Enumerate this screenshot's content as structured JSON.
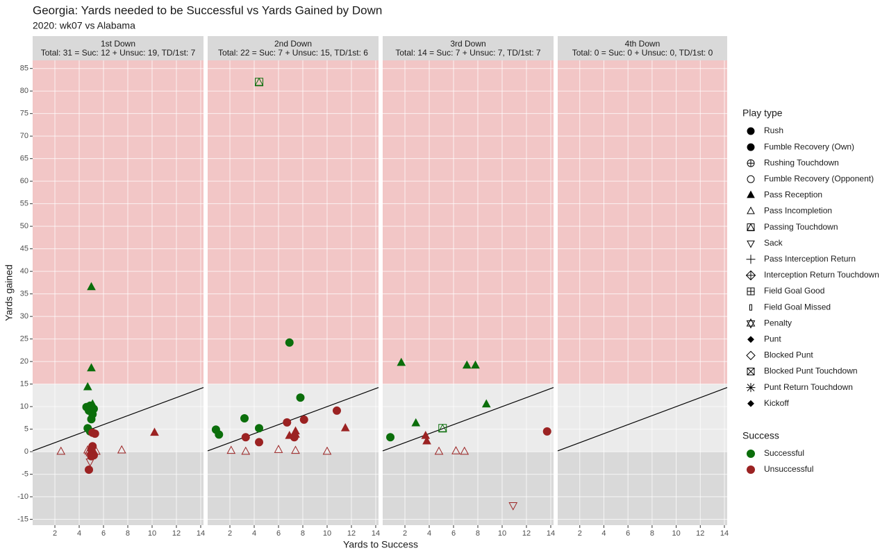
{
  "title": "Georgia: Yards needed to be Successful vs Yards Gained by Down",
  "subtitle": "2020: wk07 vs Alabama",
  "xlabel": "Yards to Success",
  "ylabel": "Yards gained",
  "legend": {
    "title": "Play type",
    "entries": [
      {
        "name": "Rush",
        "shape": "circle"
      },
      {
        "name": "Fumble Recovery (Own)",
        "shape": "circle"
      },
      {
        "name": "Rushing Touchdown",
        "shape": "circle-plus"
      },
      {
        "name": "Fumble Recovery (Opponent)",
        "shape": "open-circle"
      },
      {
        "name": "Pass Reception",
        "shape": "triangle"
      },
      {
        "name": "Pass Incompletion",
        "shape": "open-triangle"
      },
      {
        "name": "Passing Touchdown",
        "shape": "square-triangle"
      },
      {
        "name": "Sack",
        "shape": "open-down-triangle"
      },
      {
        "name": "Pass Interception Return",
        "shape": "plus"
      },
      {
        "name": "Interception Return Touchdown",
        "shape": "diamond-plus"
      },
      {
        "name": "Field Goal Good",
        "shape": "square-plus"
      },
      {
        "name": "Field Goal Missed",
        "shape": "small-rect"
      },
      {
        "name": "Penalty",
        "shape": "star-of-david"
      },
      {
        "name": "Punt",
        "shape": "diamond"
      },
      {
        "name": "Blocked Punt",
        "shape": "open-diamond"
      },
      {
        "name": "Blocked Punt Touchdown",
        "shape": "square-x"
      },
      {
        "name": "Punt Return Touchdown",
        "shape": "asterisk"
      },
      {
        "name": "Kickoff",
        "shape": "diamond"
      }
    ],
    "success_title": "Success"
  },
  "chart_data": [
    {
      "type": "scatter",
      "title": "1st Down",
      "subtitle": "Total: 31 = Suc: 12 + Unsuc: 19, TD/1st: 7",
      "xlim": [
        0.17,
        14.23
      ],
      "ylim": [
        -16.3,
        86.8
      ],
      "xticks": [
        2,
        4,
        6,
        8,
        10,
        12,
        14
      ],
      "yticks": [
        -15,
        -10,
        -5,
        0,
        5,
        10,
        15,
        20,
        25,
        30,
        35,
        40,
        45,
        50,
        55,
        60,
        65,
        70,
        75,
        80,
        85
      ],
      "grid": true,
      "bands": [
        {
          "from": 15,
          "color": "#f2c6c6"
        },
        {
          "to": 0,
          "color": "#d9d9d9"
        }
      ],
      "reference_line": {
        "slope": 1,
        "intercept": 0
      },
      "series": [
        {
          "name": "Successful",
          "color": "#0b6e0b",
          "x": [
            5,
            5,
            4.7,
            4.6,
            4.9,
            5.1,
            4.8,
            5.1,
            5,
            4.7,
            4.9,
            5.2
          ],
          "values": [
            36.5,
            18.5,
            14.3,
            9.9,
            10.2,
            10.5,
            9.1,
            8.3,
            7.2,
            5.2,
            4.5,
            9.5
          ],
          "shapes": [
            "triangle",
            "triangle",
            "triangle",
            "circle",
            "circle",
            "triangle",
            "circle",
            "circle",
            "circle",
            "circle",
            "circle",
            "circle"
          ]
        },
        {
          "name": "Unsuccessful",
          "color": "#9b2222",
          "x": [
            10.2,
            5.1,
            5.3,
            5.1,
            2.5,
            7.5,
            4.7,
            5,
            5.4,
            4.8,
            5.1,
            5.2,
            4.9,
            5,
            5.2,
            5,
            5,
            4.9,
            4.8
          ],
          "values": [
            4.2,
            4.2,
            4,
            1.2,
            0,
            0.3,
            0.3,
            0,
            0,
            0,
            0.2,
            0,
            -0.3,
            0.5,
            -0.8,
            -1,
            -0.5,
            -2.2,
            -4
          ],
          "shapes": [
            "triangle",
            "circle",
            "circle",
            "circle",
            "open-triangle",
            "open-triangle",
            "open-triangle",
            "open-triangle",
            "open-triangle",
            "open-triangle",
            "open-triangle",
            "open-triangle",
            "open-triangle",
            "circle",
            "circle",
            "circle",
            "open-triangle",
            "open-down-triangle",
            "circle"
          ]
        }
      ]
    },
    {
      "type": "scatter",
      "title": "2nd Down",
      "subtitle": "Total: 22 = Suc: 7 + Unsuc: 15, TD/1st: 6",
      "xlim": [
        0.17,
        14.23
      ],
      "ylim": [
        -16.3,
        86.8
      ],
      "xticks": [
        2,
        4,
        6,
        8,
        10,
        12,
        14
      ],
      "yticks": [
        -15,
        -10,
        -5,
        0,
        5,
        10,
        15,
        20,
        25,
        30,
        35,
        40,
        45,
        50,
        55,
        60,
        65,
        70,
        75,
        80,
        85
      ],
      "grid": true,
      "bands": [
        {
          "from": 15,
          "color": "#f2c6c6"
        },
        {
          "to": 0,
          "color": "#d9d9d9"
        }
      ],
      "reference_line": {
        "slope": 1,
        "intercept": 0
      },
      "series": [
        {
          "name": "Successful",
          "color": "#0b6e0b",
          "x": [
            4.4,
            6.9,
            7.8,
            3.2,
            4.4,
            0.85,
            1.1
          ],
          "values": [
            82,
            24.2,
            12,
            7.4,
            5.2,
            4.9,
            3.8
          ],
          "shapes": [
            "square-triangle",
            "circle",
            "circle",
            "circle",
            "circle",
            "circle",
            "circle"
          ]
        },
        {
          "name": "Unsuccessful",
          "color": "#9b2222",
          "x": [
            10.8,
            8.1,
            6.7,
            11.5,
            7.4,
            6.9,
            7.4,
            7.3,
            3.3,
            4.4,
            2.1,
            3.3,
            6,
            7.4,
            10
          ],
          "values": [
            9.1,
            7.1,
            6.5,
            5.2,
            4.5,
            3.5,
            3.8,
            3.2,
            3.2,
            2.1,
            0.2,
            0,
            0.4,
            0.2,
            0
          ],
          "shapes": [
            "circle",
            "circle",
            "circle",
            "triangle",
            "triangle",
            "triangle",
            "triangle",
            "circle",
            "circle",
            "circle",
            "open-triangle",
            "open-triangle",
            "open-triangle",
            "open-triangle",
            "open-triangle"
          ]
        }
      ]
    },
    {
      "type": "scatter",
      "title": "3rd Down",
      "subtitle": "Total: 14 = Suc: 7 + Unsuc: 7, TD/1st: 7",
      "xlim": [
        0.17,
        14.23
      ],
      "ylim": [
        -16.3,
        86.8
      ],
      "xticks": [
        2,
        4,
        6,
        8,
        10,
        12,
        14
      ],
      "yticks": [
        -15,
        -10,
        -5,
        0,
        5,
        10,
        15,
        20,
        25,
        30,
        35,
        40,
        45,
        50,
        55,
        60,
        65,
        70,
        75,
        80,
        85
      ],
      "grid": true,
      "bands": [
        {
          "from": 15,
          "color": "#f2c6c6"
        },
        {
          "to": 0,
          "color": "#d9d9d9"
        }
      ],
      "reference_line": {
        "slope": 1,
        "intercept": 0
      },
      "series": [
        {
          "name": "Successful",
          "color": "#0b6e0b",
          "x": [
            1.7,
            7.1,
            7.8,
            8.7,
            2.9,
            0.8,
            5.1
          ],
          "values": [
            19.7,
            19.1,
            19.1,
            10.5,
            6.3,
            3.2,
            5.2
          ],
          "shapes": [
            "triangle",
            "triangle",
            "triangle",
            "triangle",
            "triangle",
            "circle",
            "square-triangle"
          ]
        },
        {
          "name": "Unsuccessful",
          "color": "#9b2222",
          "x": [
            13.7,
            3.7,
            3.8,
            4.8,
            6.2,
            6.9,
            10.9
          ],
          "values": [
            4.5,
            3.5,
            2.3,
            0,
            0.1,
            0,
            -11.9
          ],
          "shapes": [
            "circle",
            "triangle",
            "triangle",
            "open-triangle",
            "open-triangle",
            "open-triangle",
            "open-down-triangle"
          ]
        }
      ]
    },
    {
      "type": "scatter",
      "title": "4th Down",
      "subtitle": "Total: 0 = Suc: 0 + Unsuc: 0, TD/1st: 0",
      "xlim": [
        0.17,
        14.23
      ],
      "ylim": [
        -16.3,
        86.8
      ],
      "xticks": [
        2,
        4,
        6,
        8,
        10,
        12,
        14
      ],
      "yticks": [
        -15,
        -10,
        -5,
        0,
        5,
        10,
        15,
        20,
        25,
        30,
        35,
        40,
        45,
        50,
        55,
        60,
        65,
        70,
        75,
        80,
        85
      ],
      "grid": true,
      "bands": [
        {
          "from": 15,
          "color": "#f2c6c6"
        },
        {
          "to": 0,
          "color": "#d9d9d9"
        }
      ],
      "reference_line": {
        "slope": 1,
        "intercept": 0
      },
      "series": [
        {
          "name": "Successful",
          "color": "#0b6e0b",
          "x": [],
          "values": [],
          "shapes": []
        },
        {
          "name": "Unsuccessful",
          "color": "#9b2222",
          "x": [],
          "values": [],
          "shapes": []
        }
      ]
    }
  ]
}
